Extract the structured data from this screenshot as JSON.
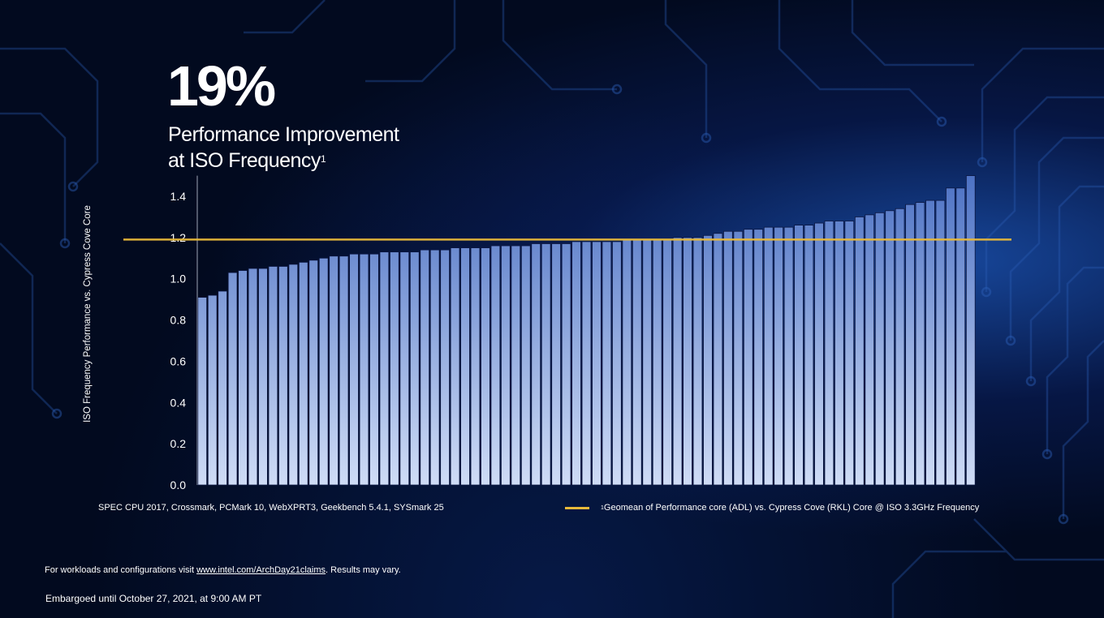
{
  "headline": "19%",
  "subtitle_line1": "Performance Improvement",
  "subtitle_line2": "at ISO Frequency",
  "subtitle_footnote_mark": "1",
  "caption_workloads": "SPEC CPU 2017,  Crossmark, PCMark 10, WebXPRT3, Geekbench 5.4.1, SYSmark 25",
  "legend": {
    "footnote_mark": "1",
    "text": "Geomean of Performance core (ADL) vs. Cypress Cove (RKL) Core @ ISO 3.3GHz Frequency"
  },
  "footnote": {
    "prefix": "For workloads and configurations visit ",
    "link": "www.intel.com/ArchDay21claims",
    "suffix": ". Results may vary."
  },
  "embargo": "Embargoed until October 27, 2021, at 9:00 AM PT",
  "colors": {
    "bar_top": "#4d72c4",
    "bar_bottom": "#cfdcf6",
    "geomean_line": "#e8b93a",
    "background": "#020a1f"
  },
  "chart_data": {
    "type": "bar",
    "title": "",
    "xlabel": "",
    "ylabel": "ISO Frequency Performance vs. Cypress Cove Core",
    "ylim": [
      0,
      1.5
    ],
    "yticks": [
      "0.0",
      "0.2",
      "0.4",
      "0.6",
      "0.8",
      "1.0",
      "1.2",
      "1.4"
    ],
    "reference_line": {
      "name": "Geomean",
      "value": 1.19
    },
    "values": [
      0.91,
      0.92,
      0.94,
      1.03,
      1.04,
      1.05,
      1.05,
      1.06,
      1.06,
      1.07,
      1.08,
      1.09,
      1.1,
      1.11,
      1.11,
      1.12,
      1.12,
      1.12,
      1.13,
      1.13,
      1.13,
      1.13,
      1.14,
      1.14,
      1.14,
      1.15,
      1.15,
      1.15,
      1.15,
      1.16,
      1.16,
      1.16,
      1.16,
      1.17,
      1.17,
      1.17,
      1.17,
      1.18,
      1.18,
      1.18,
      1.18,
      1.18,
      1.19,
      1.19,
      1.19,
      1.19,
      1.19,
      1.2,
      1.2,
      1.2,
      1.21,
      1.22,
      1.23,
      1.23,
      1.24,
      1.24,
      1.25,
      1.25,
      1.25,
      1.26,
      1.26,
      1.27,
      1.28,
      1.28,
      1.28,
      1.3,
      1.31,
      1.32,
      1.33,
      1.34,
      1.36,
      1.37,
      1.38,
      1.38,
      1.44,
      1.44,
      1.5
    ]
  }
}
